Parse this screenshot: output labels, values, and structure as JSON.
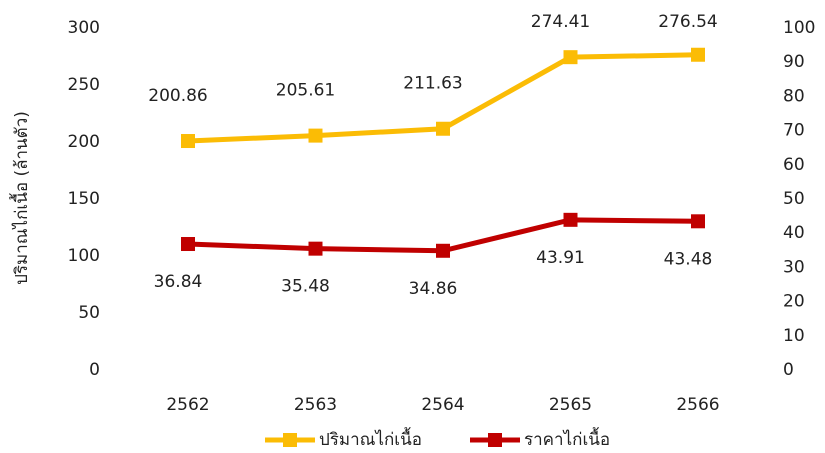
{
  "chart_data": {
    "type": "line",
    "y_label": "ปริมาณไก่เนื้อ (ล้านตัว)",
    "categories": [
      "2562",
      "2563",
      "2564",
      "2565",
      "2566"
    ],
    "series": [
      {
        "name": "ปริมาณไก่เนื้อ",
        "color": "#fbbc05",
        "values": [
          200.86,
          205.61,
          211.63,
          274.41,
          276.54
        ]
      },
      {
        "name": "ราคาไก่เนื้อ",
        "color": "#c00000",
        "values": [
          36.84,
          35.48,
          34.86,
          43.91,
          43.48
        ],
        "axis": "y2"
      }
    ],
    "ylim": [
      0,
      300
    ],
    "yticks": [
      0,
      50,
      100,
      150,
      200,
      250,
      300
    ],
    "y2lim": [
      0,
      100
    ],
    "y2ticks": [
      0,
      10,
      20,
      30,
      40,
      50,
      60,
      70,
      80,
      90,
      100
    ],
    "grid": false,
    "legend": "bottom"
  }
}
